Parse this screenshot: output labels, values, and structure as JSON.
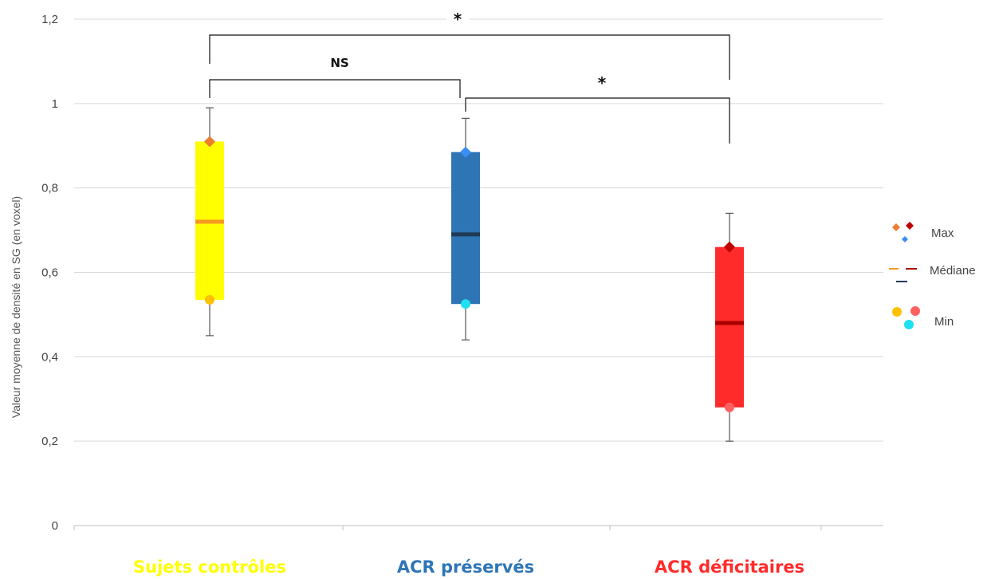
{
  "chart_data": {
    "type": "box",
    "ylabel": "Valeur moyenne de densité en SG (en voxel)",
    "ylim": [
      0,
      1.2
    ],
    "yticks": [
      0,
      0.2,
      0.4,
      0.6,
      0.8,
      1,
      1.2
    ],
    "ytick_labels": [
      "0",
      "0,2",
      "0,4",
      "0,6",
      "0,8",
      "1",
      "1,2"
    ],
    "grid": true,
    "groups": [
      {
        "label": "Sujets contrôles",
        "color": "#ffff00",
        "label_color": "#ffff00",
        "median_color": "#f59a1f",
        "max_color": "#ed7d31",
        "min_color": "#ffc000",
        "whisker_low": 0.45,
        "q1": 0.535,
        "median": 0.72,
        "q3": 0.91,
        "whisker_high": 0.99,
        "max": 0.91,
        "min": 0.535
      },
      {
        "label": "ACR préservés",
        "color": "#2e75b6",
        "label_color": "#2e75b6",
        "median_color": "#1f3b57",
        "max_color": "#3b8ef5",
        "min_color": "#1fe0f0",
        "whisker_low": 0.44,
        "q1": 0.525,
        "median": 0.69,
        "q3": 0.885,
        "whisker_high": 0.965,
        "max": 0.885,
        "min": 0.525
      },
      {
        "label": "ACR déficitaires",
        "color": "#ff2b2b",
        "label_color": "#ff2b2b",
        "median_color": "#a80000",
        "max_color": "#c00000",
        "min_color": "#ff6060",
        "whisker_low": 0.2,
        "q1": 0.28,
        "median": 0.48,
        "q3": 0.66,
        "whisker_high": 0.74,
        "max": 0.66,
        "min": 0.28
      }
    ],
    "significance": [
      {
        "from": 0,
        "to": 1,
        "label": "NS"
      },
      {
        "from": 0,
        "to": 2,
        "label": "*"
      },
      {
        "from": 1,
        "to": 2,
        "label": "*"
      }
    ],
    "legend": {
      "position": "right",
      "items": [
        "Max",
        "Médiane",
        "Min"
      ]
    }
  }
}
